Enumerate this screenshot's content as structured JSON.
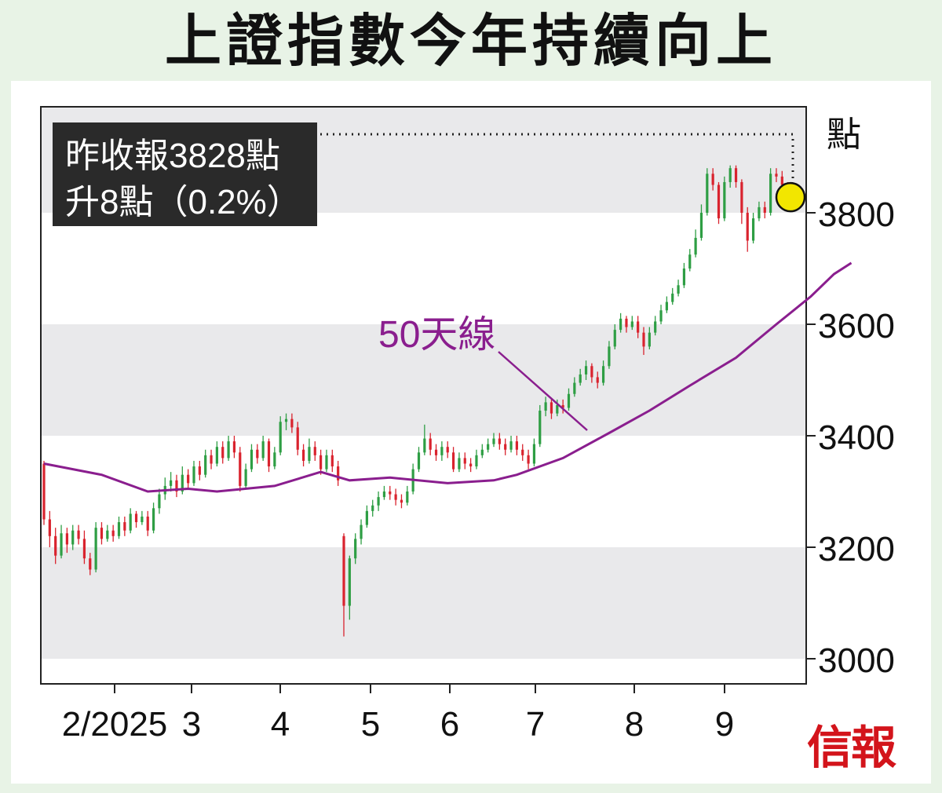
{
  "title": "上證指數今年持續向上",
  "brand": "信報",
  "chart_data": {
    "type": "candlestick",
    "y_unit": "點",
    "y_ticks": [
      3000,
      3200,
      3400,
      3600,
      3800
    ],
    "ylim": [
      2960,
      4010
    ],
    "x_ticks": [
      "2/2025",
      "3",
      "4",
      "5",
      "6",
      "7",
      "8",
      "9"
    ],
    "grid": "alternating horizontal bands",
    "annotation": {
      "line1": "昨收報3828點",
      "line2": "升8點（0.2%）",
      "highlight_value": 3828
    },
    "ma_label": "50天線",
    "colors": {
      "up": "#2e9e44",
      "down": "#d9232e",
      "ma": "#8a1e8e",
      "band": "#e9e9eb",
      "highlight": "#f2e600"
    },
    "candles": [
      [
        3350,
        3250,
        3355,
        3240
      ],
      [
        3250,
        3220,
        3265,
        3200
      ],
      [
        3220,
        3185,
        3235,
        3170
      ],
      [
        3185,
        3225,
        3240,
        3180
      ],
      [
        3225,
        3205,
        3235,
        3190
      ],
      [
        3205,
        3230,
        3240,
        3195
      ],
      [
        3230,
        3215,
        3240,
        3205
      ],
      [
        3215,
        3180,
        3230,
        3170
      ],
      [
        3180,
        3160,
        3190,
        3150
      ],
      [
        3160,
        3235,
        3245,
        3155
      ],
      [
        3235,
        3215,
        3245,
        3205
      ],
      [
        3215,
        3230,
        3240,
        3210
      ],
      [
        3230,
        3220,
        3240,
        3210
      ],
      [
        3220,
        3245,
        3255,
        3215
      ],
      [
        3245,
        3230,
        3255,
        3220
      ],
      [
        3230,
        3260,
        3270,
        3225
      ],
      [
        3260,
        3245,
        3265,
        3235
      ],
      [
        3245,
        3255,
        3265,
        3240
      ],
      [
        3255,
        3230,
        3265,
        3220
      ],
      [
        3230,
        3270,
        3280,
        3225
      ],
      [
        3270,
        3295,
        3305,
        3260
      ],
      [
        3295,
        3310,
        3325,
        3285
      ],
      [
        3310,
        3320,
        3335,
        3300
      ],
      [
        3320,
        3300,
        3330,
        3290
      ],
      [
        3300,
        3330,
        3345,
        3295
      ],
      [
        3330,
        3315,
        3340,
        3305
      ],
      [
        3315,
        3345,
        3355,
        3310
      ],
      [
        3345,
        3330,
        3355,
        3320
      ],
      [
        3330,
        3365,
        3375,
        3325
      ],
      [
        3365,
        3350,
        3375,
        3340
      ],
      [
        3350,
        3380,
        3390,
        3345
      ],
      [
        3380,
        3360,
        3390,
        3350
      ],
      [
        3360,
        3390,
        3400,
        3355
      ],
      [
        3390,
        3370,
        3400,
        3360
      ],
      [
        3370,
        3310,
        3380,
        3300
      ],
      [
        3310,
        3340,
        3350,
        3305
      ],
      [
        3340,
        3375,
        3385,
        3335
      ],
      [
        3375,
        3360,
        3385,
        3350
      ],
      [
        3360,
        3390,
        3400,
        3355
      ],
      [
        3390,
        3345,
        3395,
        3335
      ],
      [
        3345,
        3370,
        3380,
        3340
      ],
      [
        3370,
        3425,
        3435,
        3365
      ],
      [
        3425,
        3430,
        3440,
        3410
      ],
      [
        3430,
        3415,
        3440,
        3405
      ],
      [
        3415,
        3375,
        3425,
        3365
      ],
      [
        3375,
        3355,
        3385,
        3345
      ],
      [
        3355,
        3380,
        3395,
        3350
      ],
      [
        3380,
        3365,
        3390,
        3355
      ],
      [
        3365,
        3340,
        3375,
        3330
      ],
      [
        3340,
        3365,
        3375,
        3335
      ],
      [
        3365,
        3345,
        3375,
        3335
      ],
      [
        3345,
        3320,
        3355,
        3310
      ],
      [
        3220,
        3095,
        3225,
        3040
      ],
      [
        3095,
        3180,
        3185,
        3070
      ],
      [
        3180,
        3215,
        3225,
        3170
      ],
      [
        3215,
        3240,
        3250,
        3205
      ],
      [
        3240,
        3265,
        3275,
        3235
      ],
      [
        3265,
        3275,
        3285,
        3255
      ],
      [
        3275,
        3290,
        3300,
        3265
      ],
      [
        3290,
        3300,
        3310,
        3285
      ],
      [
        3300,
        3295,
        3310,
        3285
      ],
      [
        3295,
        3285,
        3305,
        3275
      ],
      [
        3285,
        3280,
        3295,
        3270
      ],
      [
        3280,
        3300,
        3310,
        3275
      ],
      [
        3300,
        3340,
        3350,
        3295
      ],
      [
        3340,
        3370,
        3380,
        3335
      ],
      [
        3370,
        3395,
        3420,
        3365
      ],
      [
        3395,
        3375,
        3405,
        3365
      ],
      [
        3375,
        3365,
        3385,
        3355
      ],
      [
        3365,
        3380,
        3390,
        3355
      ],
      [
        3380,
        3370,
        3390,
        3360
      ],
      [
        3370,
        3340,
        3380,
        3335
      ],
      [
        3340,
        3360,
        3370,
        3335
      ],
      [
        3360,
        3350,
        3370,
        3340
      ],
      [
        3350,
        3345,
        3360,
        3335
      ],
      [
        3345,
        3365,
        3375,
        3340
      ],
      [
        3365,
        3375,
        3385,
        3360
      ],
      [
        3375,
        3385,
        3395,
        3370
      ],
      [
        3385,
        3395,
        3405,
        3380
      ],
      [
        3395,
        3385,
        3405,
        3375
      ],
      [
        3385,
        3375,
        3395,
        3365
      ],
      [
        3375,
        3390,
        3400,
        3370
      ],
      [
        3390,
        3375,
        3400,
        3365
      ],
      [
        3375,
        3365,
        3385,
        3355
      ],
      [
        3365,
        3350,
        3375,
        3340
      ],
      [
        3350,
        3385,
        3395,
        3345
      ],
      [
        3385,
        3445,
        3455,
        3380
      ],
      [
        3445,
        3460,
        3470,
        3435
      ],
      [
        3460,
        3440,
        3465,
        3430
      ],
      [
        3440,
        3455,
        3465,
        3435
      ],
      [
        3455,
        3450,
        3465,
        3440
      ],
      [
        3450,
        3475,
        3485,
        3445
      ],
      [
        3475,
        3495,
        3505,
        3470
      ],
      [
        3495,
        3510,
        3520,
        3490
      ],
      [
        3510,
        3525,
        3535,
        3500
      ],
      [
        3525,
        3505,
        3530,
        3495
      ],
      [
        3505,
        3495,
        3515,
        3485
      ],
      [
        3495,
        3525,
        3535,
        3490
      ],
      [
        3525,
        3560,
        3570,
        3520
      ],
      [
        3560,
        3590,
        3600,
        3555
      ],
      [
        3590,
        3610,
        3620,
        3585
      ],
      [
        3610,
        3595,
        3615,
        3585
      ],
      [
        3595,
        3605,
        3615,
        3590
      ],
      [
        3605,
        3585,
        3615,
        3575
      ],
      [
        3585,
        3560,
        3595,
        3545
      ],
      [
        3560,
        3585,
        3595,
        3555
      ],
      [
        3585,
        3605,
        3615,
        3580
      ],
      [
        3605,
        3625,
        3635,
        3600
      ],
      [
        3625,
        3640,
        3650,
        3620
      ],
      [
        3640,
        3655,
        3665,
        3635
      ],
      [
        3655,
        3670,
        3680,
        3650
      ],
      [
        3670,
        3700,
        3710,
        3665
      ],
      [
        3700,
        3725,
        3735,
        3695
      ],
      [
        3725,
        3755,
        3770,
        3720
      ],
      [
        3755,
        3800,
        3815,
        3750
      ],
      [
        3800,
        3870,
        3880,
        3795
      ],
      [
        3870,
        3850,
        3880,
        3840
      ],
      [
        3850,
        3790,
        3855,
        3780
      ],
      [
        3790,
        3855,
        3865,
        3785
      ],
      [
        3855,
        3880,
        3885,
        3845
      ],
      [
        3880,
        3855,
        3885,
        3845
      ],
      [
        3855,
        3800,
        3860,
        3780
      ],
      [
        3800,
        3750,
        3810,
        3730
      ],
      [
        3750,
        3790,
        3800,
        3745
      ],
      [
        3790,
        3810,
        3820,
        3785
      ],
      [
        3810,
        3800,
        3820,
        3790
      ],
      [
        3800,
        3870,
        3880,
        3795
      ],
      [
        3870,
        3865,
        3880,
        3855
      ],
      [
        3865,
        3850,
        3875,
        3840
      ],
      [
        3850,
        3820,
        3855,
        3810
      ],
      [
        3820,
        3828,
        3835,
        3812
      ]
    ],
    "ma50": [
      [
        0,
        3350
      ],
      [
        10,
        3330
      ],
      [
        18,
        3300
      ],
      [
        25,
        3305
      ],
      [
        30,
        3300
      ],
      [
        40,
        3310
      ],
      [
        48,
        3335
      ],
      [
        53,
        3320
      ],
      [
        60,
        3325
      ],
      [
        70,
        3315
      ],
      [
        78,
        3320
      ],
      [
        82,
        3330
      ],
      [
        90,
        3360
      ],
      [
        98,
        3405
      ],
      [
        105,
        3445
      ],
      [
        112,
        3490
      ],
      [
        120,
        3540
      ],
      [
        127,
        3600
      ],
      [
        133,
        3650
      ],
      [
        137,
        3690
      ],
      [
        140,
        3710
      ]
    ]
  }
}
